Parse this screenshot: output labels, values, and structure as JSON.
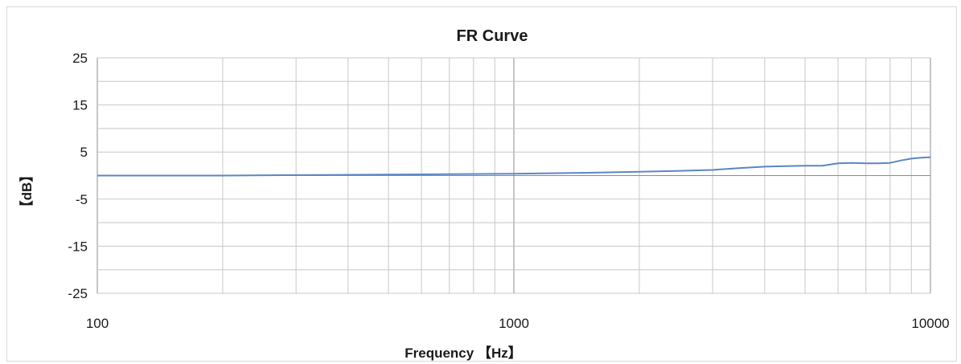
{
  "chart_data": {
    "type": "line",
    "title": "FR Curve",
    "xlabel": "Frequency 【Hz】",
    "ylabel": "【dB】",
    "x_scale": "log",
    "xlim": [
      100,
      10000
    ],
    "ylim": [
      -25,
      25
    ],
    "x_ticks": [
      "100",
      "1000",
      "10000"
    ],
    "y_ticks": [
      "25",
      "15",
      "5",
      "-5",
      "-15",
      "-25"
    ],
    "grid": true,
    "legend": "none",
    "series": [
      {
        "color": "#5b86c5",
        "x": [
          100,
          200,
          300,
          500,
          700,
          1000,
          1500,
          2000,
          2500,
          3000,
          3500,
          4000,
          4500,
          5000,
          5500,
          6000,
          6500,
          7000,
          7500,
          8000,
          8500,
          9000,
          9500,
          10000
        ],
        "y": [
          0.0,
          0.0,
          0.1,
          0.2,
          0.3,
          0.4,
          0.6,
          0.8,
          1.0,
          1.2,
          1.6,
          1.9,
          2.0,
          2.1,
          2.1,
          2.6,
          2.7,
          2.6,
          2.6,
          2.7,
          3.2,
          3.6,
          3.8,
          3.9
        ]
      }
    ]
  }
}
